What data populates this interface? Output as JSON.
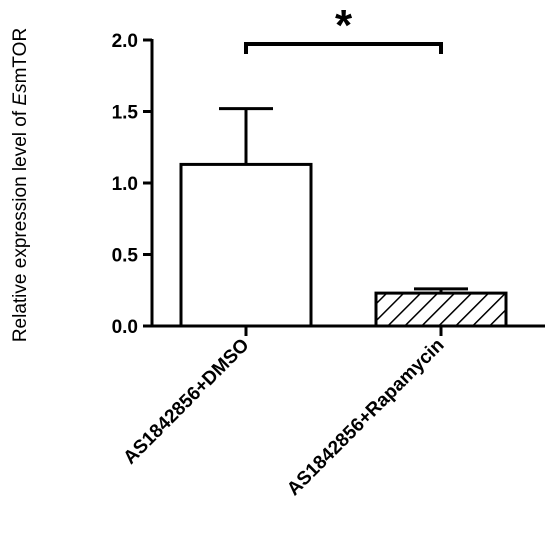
{
  "chart_data": {
    "type": "bar",
    "categories": [
      "AS1842856+DMSO",
      "AS1842856+Rapamycin"
    ],
    "values": [
      1.13,
      0.23
    ],
    "error_upper": [
      1.52,
      0.26
    ],
    "bar_patterns": [
      "none",
      "diagonal-hatch"
    ],
    "ylabel_prefix": "Relative expression level of ",
    "ylabel_italic": "Es",
    "ylabel_suffix": "mTOR",
    "ylim": [
      0,
      2.0
    ],
    "yticks": [
      0.0,
      0.5,
      1.0,
      1.5,
      2.0
    ],
    "ytick_labels": [
      "0.0",
      "0.5",
      "1.0",
      "1.5",
      "2.0"
    ],
    "significance": {
      "label": "*",
      "between": [
        0,
        1
      ]
    },
    "grid": false,
    "legend": "none"
  }
}
